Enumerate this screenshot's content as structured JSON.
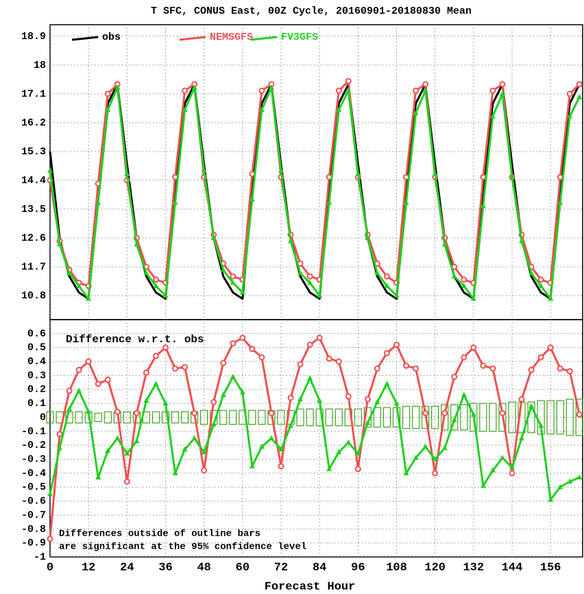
{
  "chart_data": [
    {
      "type": "line",
      "title": "T SFC, CONUS East, 00Z Cycle, 20160901-20180830 Mean",
      "x": [
        0,
        3,
        6,
        9,
        12,
        15,
        18,
        21,
        24,
        27,
        30,
        33,
        36,
        39,
        42,
        45,
        48,
        51,
        54,
        57,
        60,
        63,
        66,
        69,
        72,
        75,
        78,
        81,
        84,
        87,
        90,
        93,
        96,
        99,
        102,
        105,
        108,
        111,
        114,
        117,
        120,
        123,
        126,
        129,
        132,
        135,
        138,
        141,
        144,
        147,
        150,
        153,
        156,
        159,
        162,
        165
      ],
      "xlim": [
        0,
        166
      ],
      "xticks": [
        0,
        12,
        24,
        36,
        48,
        60,
        72,
        84,
        96,
        108,
        120,
        132,
        144,
        156
      ],
      "ylim": [
        10.05,
        19.26
      ],
      "yticks": [
        10.8,
        11.7,
        12.6,
        13.5,
        14.4,
        15.3,
        16.2,
        17.1,
        18,
        18.9
      ],
      "grid": true,
      "legend": "top-left",
      "series": [
        {
          "name": "obs",
          "color": "#000000",
          "marker": "none",
          "values": [
            15.3,
            12.6,
            11.4,
            10.9,
            10.7,
            14.1,
            16.8,
            17.4,
            14.9,
            12.6,
            11.4,
            10.9,
            10.7,
            14.1,
            16.8,
            17.4,
            14.9,
            12.6,
            11.4,
            10.9,
            10.7,
            14.1,
            16.8,
            17.4,
            14.9,
            12.6,
            11.4,
            10.9,
            10.7,
            14.1,
            16.8,
            17.4,
            14.9,
            12.6,
            11.4,
            10.9,
            10.7,
            14.1,
            16.8,
            17.4,
            14.9,
            12.6,
            11.4,
            10.9,
            10.7,
            14.1,
            16.8,
            17.4,
            14.9,
            12.6,
            11.4,
            10.9,
            10.7,
            14.1,
            16.8,
            17.4
          ]
        },
        {
          "name": "NEMSGFS",
          "color": "#f05050",
          "marker": "circle",
          "values": [
            14.4,
            12.5,
            11.6,
            11.2,
            11.1,
            14.3,
            17.1,
            17.4,
            14.4,
            12.6,
            11.7,
            11.3,
            11.2,
            14.5,
            17.2,
            17.4,
            14.5,
            12.7,
            11.8,
            11.4,
            11.3,
            14.6,
            17.2,
            17.4,
            14.5,
            12.7,
            11.8,
            11.4,
            11.3,
            14.5,
            17.2,
            17.5,
            14.5,
            12.7,
            11.8,
            11.4,
            11.2,
            14.5,
            17.2,
            17.4,
            14.5,
            12.6,
            11.7,
            11.3,
            11.2,
            14.5,
            17.2,
            17.4,
            14.5,
            12.7,
            11.7,
            11.3,
            11.2,
            14.5,
            17.1,
            17.4
          ]
        },
        {
          "name": "FV3GFS",
          "color": "#20d020",
          "marker": "triangle",
          "values": [
            14.7,
            12.4,
            11.5,
            11.1,
            10.7,
            13.7,
            16.6,
            17.3,
            14.6,
            12.4,
            11.5,
            11.1,
            10.8,
            13.7,
            16.6,
            17.3,
            14.7,
            12.6,
            11.6,
            11.2,
            10.9,
            13.8,
            16.6,
            17.3,
            14.7,
            12.5,
            11.5,
            11.2,
            10.8,
            13.7,
            16.6,
            17.2,
            14.6,
            12.6,
            11.5,
            11.1,
            10.8,
            13.7,
            16.5,
            17.2,
            14.6,
            12.4,
            11.4,
            11.1,
            10.7,
            13.6,
            16.4,
            17.1,
            14.5,
            12.5,
            11.5,
            11.1,
            10.7,
            13.7,
            16.4,
            17.0
          ]
        }
      ]
    },
    {
      "type": "line",
      "xlabel": "Forecast Hour",
      "annotations": [
        "Difference w.r.t. obs",
        "Differences outside of outline bars",
        "are significant at the 95% confidence level"
      ],
      "x": [
        0,
        3,
        6,
        9,
        12,
        15,
        18,
        21,
        24,
        27,
        30,
        33,
        36,
        39,
        42,
        45,
        48,
        51,
        54,
        57,
        60,
        63,
        66,
        69,
        72,
        75,
        78,
        81,
        84,
        87,
        90,
        93,
        96,
        99,
        102,
        105,
        108,
        111,
        114,
        117,
        120,
        123,
        126,
        129,
        132,
        135,
        138,
        141,
        144,
        147,
        150,
        153,
        156,
        159,
        162,
        165
      ],
      "xlim": [
        0,
        166
      ],
      "xticks": [
        0,
        12,
        24,
        36,
        48,
        60,
        72,
        84,
        96,
        108,
        120,
        132,
        144,
        156
      ],
      "ylim": [
        -1,
        0.7
      ],
      "yticks": [
        -1,
        -0.9,
        -0.8,
        -0.7,
        -0.6,
        -0.5,
        -0.4,
        -0.3,
        -0.2,
        -0.1,
        0,
        0.1,
        0.2,
        0.3,
        0.4,
        0.5,
        0.6
      ],
      "grid": true,
      "significance_bars": {
        "color": "#40a020",
        "values": [
          0.04,
          0.04,
          0.04,
          0.04,
          0.04,
          0.03,
          0.04,
          0.04,
          0.04,
          0.04,
          0.04,
          0.04,
          0.04,
          0.04,
          0.04,
          0.04,
          0.05,
          0.05,
          0.05,
          0.05,
          0.05,
          0.05,
          0.05,
          0.05,
          0.05,
          0.05,
          0.06,
          0.06,
          0.06,
          0.06,
          0.06,
          0.06,
          0.06,
          0.07,
          0.07,
          0.07,
          0.07,
          0.08,
          0.08,
          0.08,
          0.08,
          0.09,
          0.09,
          0.09,
          0.1,
          0.1,
          0.1,
          0.1,
          0.11,
          0.11,
          0.11,
          0.12,
          0.12,
          0.12,
          0.13,
          0.13
        ]
      },
      "series": [
        {
          "color": "#f05050",
          "marker": "circle",
          "values": [
            -0.87,
            -0.12,
            0.19,
            0.34,
            0.4,
            0.24,
            0.27,
            0.04,
            -0.46,
            0.03,
            0.32,
            0.44,
            0.5,
            0.35,
            0.36,
            0.03,
            -0.38,
            0.11,
            0.39,
            0.53,
            0.57,
            0.49,
            0.43,
            0.03,
            -0.35,
            0.14,
            0.38,
            0.52,
            0.57,
            0.42,
            0.4,
            0.15,
            -0.37,
            0.13,
            0.35,
            0.46,
            0.52,
            0.37,
            0.35,
            0.03,
            -0.4,
            0.03,
            0.29,
            0.43,
            0.5,
            0.37,
            0.35,
            0.03,
            -0.4,
            0.13,
            0.34,
            0.43,
            0.5,
            0.35,
            0.33,
            0.02
          ]
        },
        {
          "color": "#20d020",
          "marker": "triangle",
          "values": [
            -0.55,
            -0.22,
            0.06,
            0.19,
            0.04,
            -0.43,
            -0.24,
            -0.15,
            -0.26,
            -0.17,
            0.12,
            0.24,
            0.1,
            -0.4,
            -0.23,
            -0.15,
            -0.25,
            -0.05,
            0.16,
            0.29,
            0.18,
            -0.35,
            -0.21,
            -0.15,
            -0.23,
            -0.06,
            0.13,
            0.28,
            0.12,
            -0.37,
            -0.25,
            -0.18,
            -0.26,
            -0.04,
            0.11,
            0.24,
            0.1,
            -0.4,
            -0.29,
            -0.21,
            -0.3,
            -0.22,
            -0.02,
            0.16,
            0.02,
            -0.49,
            -0.38,
            -0.29,
            -0.36,
            -0.15,
            0.08,
            -0.06,
            -0.59,
            -0.5,
            -0.46,
            -0.43
          ]
        }
      ]
    }
  ]
}
